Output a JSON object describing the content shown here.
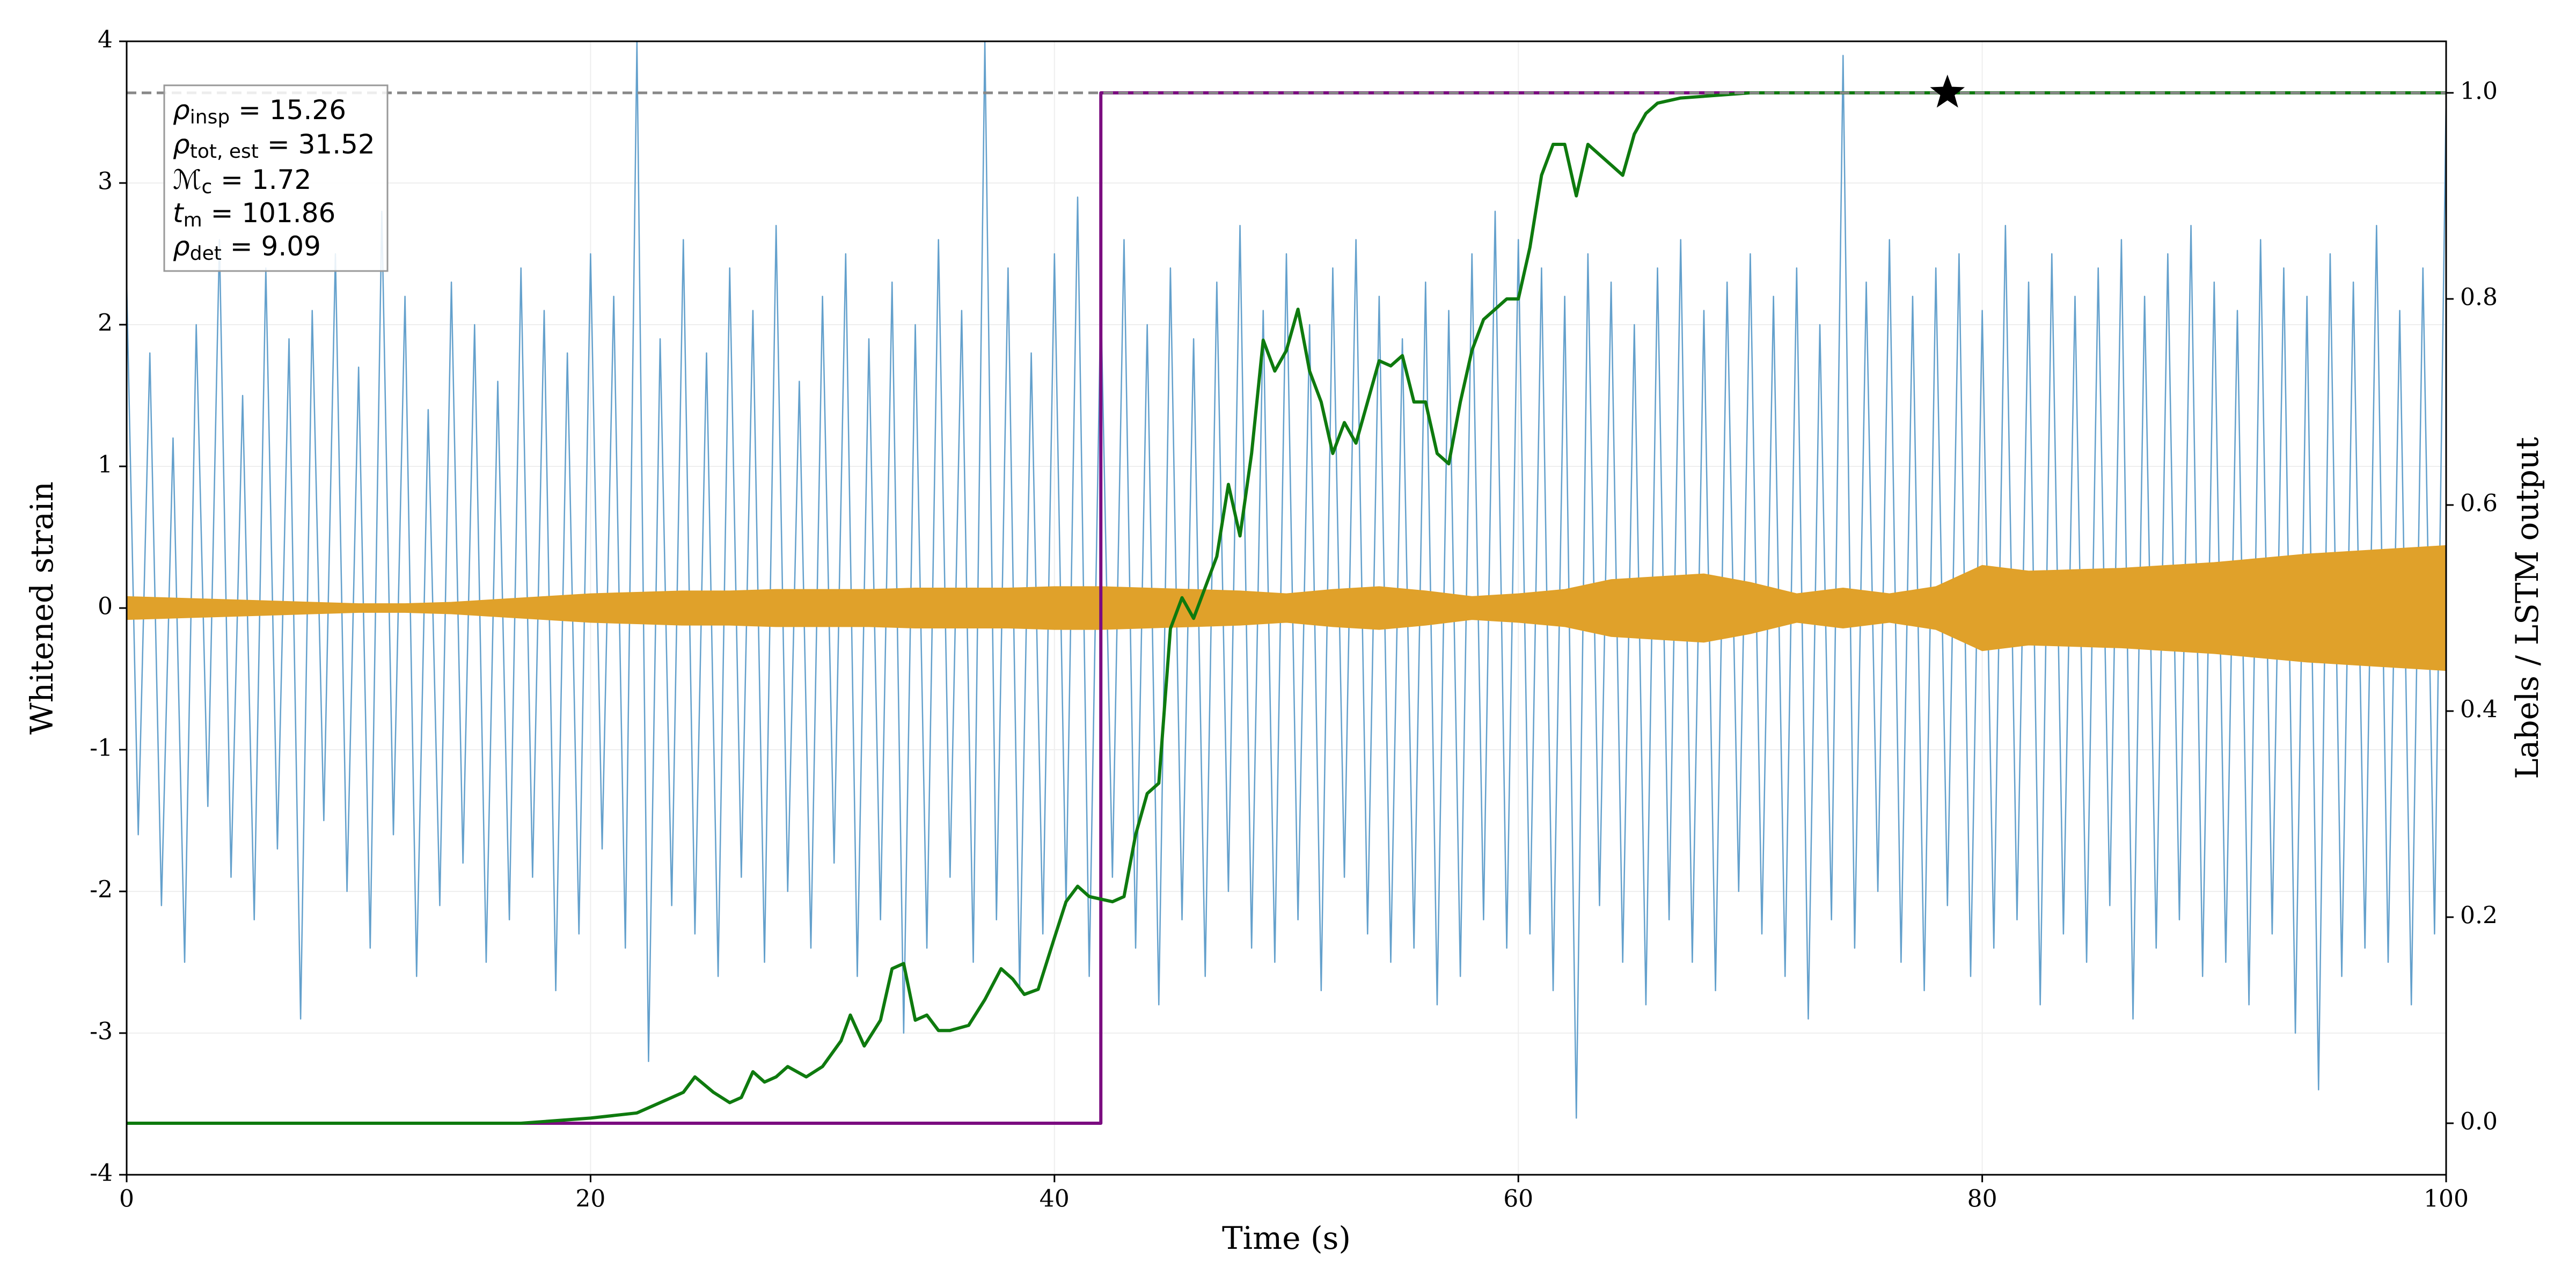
{
  "chart_data": {
    "type": "line",
    "xlabel": "Time (s)",
    "ylabel": "Whitened strain",
    "y2label": "Labels / LSTM output",
    "xlim": [
      0,
      100
    ],
    "ylim": [
      -4,
      4
    ],
    "y2lim": [
      -0.05,
      1.05
    ],
    "xticks": [
      0,
      20,
      40,
      60,
      80,
      100
    ],
    "yticks": [
      -4,
      -3,
      -2,
      -1,
      0,
      1,
      2,
      3,
      4
    ],
    "y2ticks": [
      {
        "value": 0,
        "label": "0.0"
      },
      0.2,
      0.4,
      0.6,
      0.8,
      {
        "value": 1,
        "label": "1.0"
      }
    ],
    "grid": true,
    "x": [
      0,
      0.5,
      1,
      1.5,
      2,
      2.5,
      3,
      3.5,
      4,
      4.5,
      5,
      5.5,
      6,
      6.5,
      7,
      7.5,
      8,
      8.5,
      9,
      9.5,
      10,
      10.5,
      11,
      11.5,
      12,
      12.5,
      13,
      13.5,
      14,
      14.5,
      15,
      15.5,
      16,
      16.5,
      17,
      17.5,
      18,
      18.5,
      19,
      19.5,
      20,
      20.5,
      21,
      21.5,
      22,
      22.5,
      23,
      23.5,
      24,
      24.5,
      25,
      25.5,
      26,
      26.5,
      27,
      27.5,
      28,
      28.5,
      29,
      29.5,
      30,
      30.5,
      31,
      31.5,
      32,
      32.5,
      33,
      33.5,
      34,
      34.5,
      35,
      35.5,
      36,
      36.5,
      37,
      37.5,
      38,
      38.5,
      39,
      39.5,
      40,
      40.5,
      41,
      41.5,
      42,
      42.5,
      43,
      43.5,
      44,
      44.5,
      45,
      45.5,
      46,
      46.5,
      47,
      47.5,
      48,
      48.5,
      49,
      49.5,
      50,
      50.5,
      51,
      51.5,
      52,
      52.5,
      53,
      53.5,
      54,
      54.5,
      55,
      55.5,
      56,
      56.5,
      57,
      57.5,
      58,
      58.5,
      59,
      59.5,
      60,
      60.5,
      61,
      61.5,
      62,
      62.5,
      63,
      63.5,
      64,
      64.5,
      65,
      65.5,
      66,
      66.5,
      67,
      67.5,
      68,
      68.5,
      69,
      69.5,
      70,
      70.5,
      71,
      71.5,
      72,
      72.5,
      73,
      73.5,
      74,
      74.5,
      75,
      75.5,
      76,
      76.5,
      77,
      77.5,
      78,
      78.5,
      79,
      79.5,
      80,
      80.5,
      81,
      81.5,
      82,
      82.5,
      83,
      83.5,
      84,
      84.5,
      85,
      85.5,
      86,
      86.5,
      87,
      87.5,
      88,
      88.5,
      89,
      89.5,
      90,
      90.5,
      91,
      91.5,
      92,
      92.5,
      93,
      93.5,
      94,
      94.5,
      95,
      95.5,
      96,
      96.5,
      97,
      97.5,
      98,
      98.5,
      99,
      99.5,
      100
    ],
    "series": [
      {
        "color": "#5b9bc9",
        "values": [
          2.3,
          -1.6,
          1.8,
          -2.1,
          1.2,
          -2.5,
          2.0,
          -1.4,
          2.6,
          -1.9,
          1.5,
          -2.2,
          2.4,
          -1.7,
          1.9,
          -2.9,
          2.1,
          -1.5,
          2.5,
          -2.0,
          1.7,
          -2.4,
          2.8,
          -1.6,
          2.2,
          -2.6,
          1.4,
          -2.1,
          2.3,
          -1.8,
          2.0,
          -2.5,
          1.6,
          -2.2,
          2.4,
          -1.9,
          2.1,
          -2.7,
          1.8,
          -2.3,
          2.5,
          -1.7,
          2.2,
          -2.4,
          4.0,
          -3.2,
          1.9,
          -2.1,
          2.6,
          -2.3,
          1.8,
          -2.6,
          2.4,
          -1.9,
          2.1,
          -2.5,
          2.7,
          -2.0,
          1.6,
          -2.4,
          2.2,
          -1.8,
          2.5,
          -2.6,
          1.9,
          -2.2,
          2.3,
          -3.0,
          2.0,
          -2.4,
          2.6,
          -1.9,
          2.1,
          -2.5,
          4.0,
          -2.2,
          2.4,
          -2.7,
          1.8,
          -2.3,
          2.5,
          -2.1,
          2.9,
          -2.6,
          2.2,
          -1.9,
          2.6,
          -2.4,
          2.0,
          -2.8,
          2.4,
          -2.2,
          1.9,
          -2.6,
          2.3,
          -2.0,
          2.7,
          -2.4,
          2.1,
          -2.5,
          2.5,
          -2.2,
          2.0,
          -2.7,
          2.4,
          -1.9,
          2.6,
          -2.3,
          2.2,
          -2.5,
          1.9,
          -2.4,
          2.3,
          -2.8,
          2.1,
          -2.6,
          2.5,
          -2.2,
          2.8,
          -2.4,
          2.6,
          -2.3,
          2.4,
          -2.7,
          2.2,
          -3.6,
          2.5,
          -2.1,
          2.3,
          -2.5,
          2.0,
          -2.8,
          2.4,
          -2.2,
          2.6,
          -2.5,
          2.1,
          -2.7,
          2.3,
          -2.0,
          2.5,
          -2.3,
          2.2,
          -2.6,
          2.4,
          -2.9,
          2.0,
          -2.2,
          3.9,
          -2.4,
          2.3,
          -2.0,
          2.6,
          -2.5,
          2.2,
          -2.7,
          2.4,
          -2.1,
          2.5,
          -2.6,
          2.1,
          -2.4,
          2.7,
          -2.2,
          2.3,
          -2.8,
          2.5,
          -2.3,
          2.2,
          -2.5,
          2.4,
          -2.1,
          2.6,
          -2.9,
          2.2,
          -2.4,
          2.5,
          -2.2,
          2.7,
          -2.6,
          2.3,
          -2.5,
          2.1,
          -2.8,
          2.6,
          -2.3,
          2.4,
          -3.0,
          2.2,
          -3.4,
          2.5,
          -2.6,
          2.3,
          -2.4,
          2.7,
          -2.5,
          2.1,
          -2.8,
          2.4,
          -2.3,
          3.6
        ]
      },
      {
        "color": "#e0a12a",
        "kind": "band",
        "x": [
          0,
          2,
          4,
          6,
          8,
          10,
          12,
          14,
          16,
          18,
          20,
          22,
          24,
          26,
          28,
          30,
          32,
          34,
          36,
          38,
          40,
          42,
          44,
          46,
          48,
          50,
          52,
          54,
          56,
          58,
          60,
          62,
          64,
          66,
          68,
          70,
          72,
          74,
          76,
          78,
          80,
          82,
          84,
          86,
          88,
          90,
          92,
          94,
          96,
          98,
          100
        ],
        "values": [
          0.08,
          0.07,
          0.06,
          0.05,
          0.04,
          0.03,
          0.03,
          0.04,
          0.06,
          0.08,
          0.1,
          0.11,
          0.12,
          0.12,
          0.13,
          0.13,
          0.13,
          0.14,
          0.14,
          0.14,
          0.15,
          0.15,
          0.14,
          0.13,
          0.12,
          0.1,
          0.13,
          0.15,
          0.12,
          0.08,
          0.1,
          0.13,
          0.2,
          0.22,
          0.24,
          0.18,
          0.1,
          0.14,
          0.1,
          0.15,
          0.3,
          0.26,
          0.27,
          0.28,
          0.3,
          0.32,
          0.35,
          0.38,
          0.4,
          0.42,
          0.44
        ],
        "lower": [
          -0.08,
          -0.07,
          -0.06,
          -0.05,
          -0.04,
          -0.03,
          -0.03,
          -0.04,
          -0.06,
          -0.08,
          -0.1,
          -0.11,
          -0.12,
          -0.12,
          -0.13,
          -0.13,
          -0.13,
          -0.14,
          -0.14,
          -0.14,
          -0.15,
          -0.15,
          -0.14,
          -0.13,
          -0.12,
          -0.1,
          -0.13,
          -0.15,
          -0.12,
          -0.08,
          -0.1,
          -0.13,
          -0.2,
          -0.22,
          -0.24,
          -0.18,
          -0.1,
          -0.14,
          -0.1,
          -0.15,
          -0.3,
          -0.26,
          -0.27,
          -0.28,
          -0.3,
          -0.32,
          -0.35,
          -0.38,
          -0.4,
          -0.42,
          -0.44
        ]
      },
      {
        "color": "#7b0c80",
        "axis": "y2",
        "x": [
          0,
          42,
          42,
          100
        ],
        "values": [
          0,
          0,
          1,
          1
        ]
      },
      {
        "color": "#0e7a0e",
        "axis": "y2",
        "x": [
          0,
          17,
          20,
          22,
          23,
          24,
          24.5,
          25.3,
          26,
          26.5,
          27,
          27.5,
          28,
          28.5,
          29.3,
          30,
          30.8,
          31.2,
          31.8,
          32.5,
          33,
          33.5,
          34,
          34.5,
          35,
          35.5,
          36.3,
          37,
          37.7,
          38.2,
          38.7,
          39.3,
          40,
          40.5,
          41,
          41.5,
          42.5,
          43,
          43.5,
          44,
          44.5,
          45,
          45.5,
          46,
          47,
          47.5,
          48,
          48.5,
          49,
          49.5,
          50,
          50.5,
          51,
          51.5,
          52,
          52.5,
          53,
          53.5,
          54,
          54.5,
          55,
          55.5,
          56,
          56.5,
          57,
          57.5,
          58,
          58.5,
          59,
          59.5,
          60,
          60.5,
          61,
          61.5,
          62,
          62.5,
          63,
          63.5,
          64,
          64.5,
          65,
          65.5,
          66,
          67,
          70,
          100
        ],
        "values": [
          0,
          0,
          0.005,
          0.01,
          0.02,
          0.03,
          0.045,
          0.03,
          0.02,
          0.025,
          0.05,
          0.04,
          0.045,
          0.055,
          0.045,
          0.055,
          0.08,
          0.105,
          0.075,
          0.1,
          0.15,
          0.155,
          0.1,
          0.105,
          0.09,
          0.09,
          0.095,
          0.12,
          0.15,
          0.14,
          0.125,
          0.13,
          0.18,
          0.215,
          0.23,
          0.22,
          0.215,
          0.22,
          0.28,
          0.32,
          0.33,
          0.48,
          0.51,
          0.49,
          0.55,
          0.62,
          0.57,
          0.65,
          0.76,
          0.73,
          0.75,
          0.79,
          0.73,
          0.7,
          0.65,
          0.68,
          0.66,
          0.7,
          0.74,
          0.735,
          0.745,
          0.7,
          0.7,
          0.65,
          0.64,
          0.7,
          0.75,
          0.78,
          0.79,
          0.8,
          0.8,
          0.85,
          0.92,
          0.95,
          0.95,
          0.9,
          0.95,
          0.94,
          0.93,
          0.92,
          0.96,
          0.98,
          0.99,
          0.995,
          1.0,
          1.0
        ]
      }
    ],
    "hline": {
      "value": 1.0,
      "axis": "y2",
      "color": "#888888"
    },
    "marker": {
      "x": 78.5,
      "value": 1.0,
      "axis": "y2",
      "color": "#000000"
    },
    "annotations": [
      {
        "symbol": "ρ",
        "subscript": "insp",
        "text": " = 15.26"
      },
      {
        "symbol": "ρ",
        "subscript": "tot, est",
        "text": " = 31.52"
      },
      {
        "symbol": "ℳ",
        "subscript": "c",
        "text": " = 1.72"
      },
      {
        "symbol": "t",
        "subscript": "m",
        "text": " = 101.86"
      },
      {
        "symbol": "ρ",
        "subscript": "det",
        "text": " = 9.09"
      }
    ]
  }
}
